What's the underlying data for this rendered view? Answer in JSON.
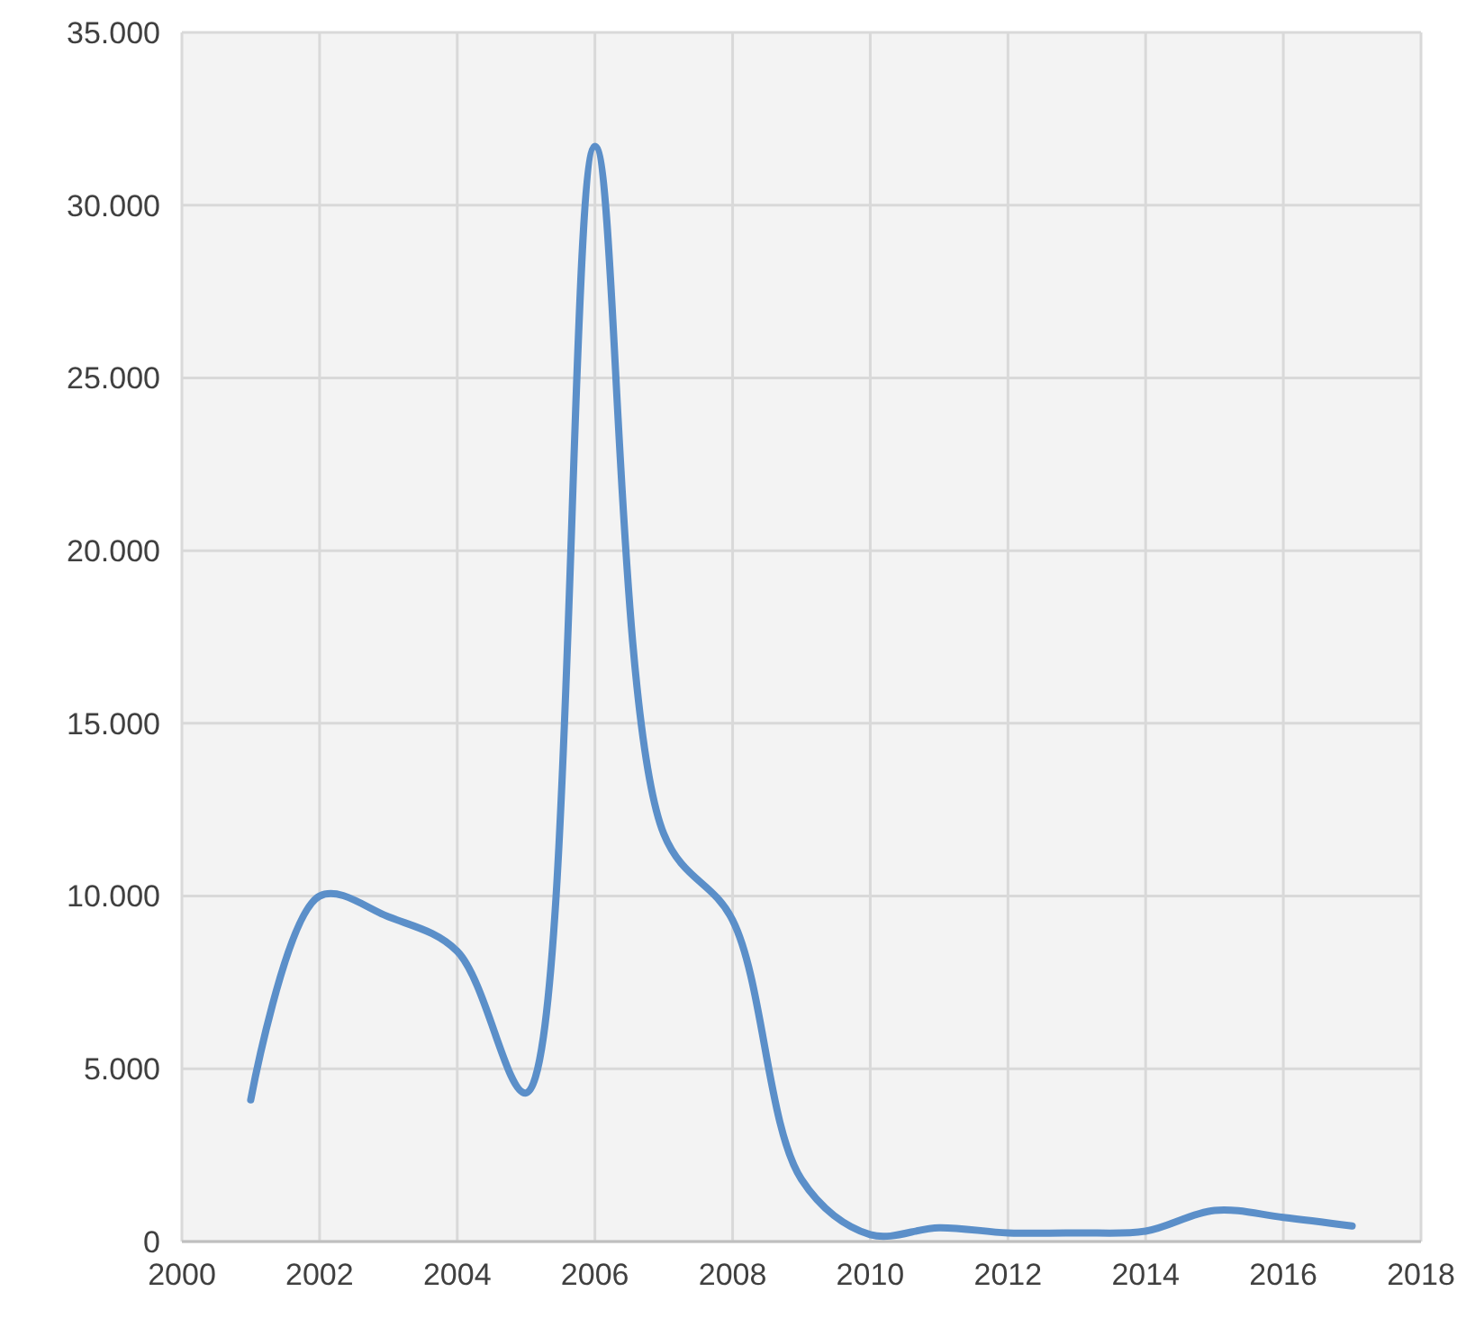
{
  "chart_data": {
    "type": "line",
    "x": [
      2001,
      2002,
      2003,
      2004,
      2005,
      2006,
      2007,
      2008,
      2009,
      2010,
      2011,
      2012,
      2013,
      2014,
      2015,
      2016,
      2017
    ],
    "series": [
      {
        "color": "#5b8fc9",
        "values": [
          4100,
          10000,
          9400,
          8400,
          4300,
          31700,
          11800,
          9300,
          1800,
          200,
          400,
          250,
          250,
          300,
          900,
          700,
          450
        ]
      }
    ],
    "xlim": [
      2000,
      2018
    ],
    "xticks": [
      2000,
      2002,
      2004,
      2006,
      2008,
      2010,
      2012,
      2014,
      2016,
      2018
    ],
    "ylim": [
      0,
      35000
    ],
    "yticks": [
      {
        "value": 0,
        "label": "0"
      },
      {
        "value": 5000,
        "label": "5.000"
      },
      {
        "value": 10000,
        "label": "10.000"
      },
      {
        "value": 15000,
        "label": "15.000"
      },
      {
        "value": 20000,
        "label": "20.000"
      },
      {
        "value": 25000,
        "label": "25.000"
      },
      {
        "value": 30000,
        "label": "30.000"
      },
      {
        "value": 35000,
        "label": "35.000"
      }
    ],
    "grid": true,
    "marker": "none",
    "line_style": "solid"
  }
}
